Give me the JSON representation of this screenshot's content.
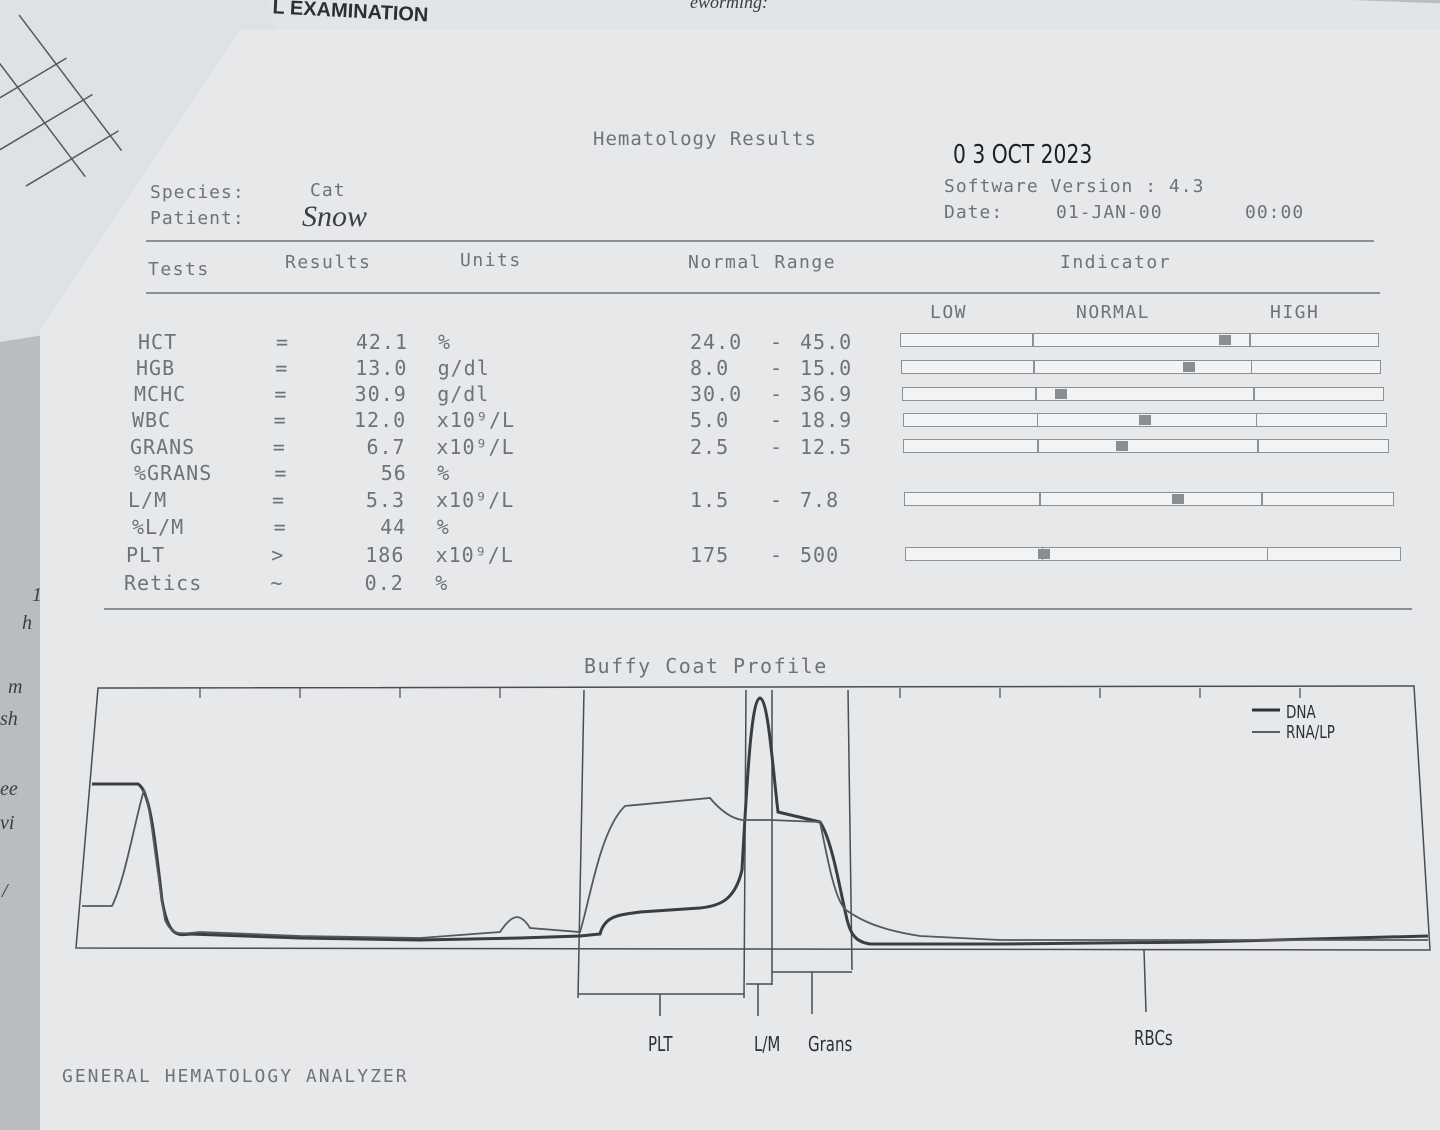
{
  "background_paper": {
    "title": "AL EXAMINATION",
    "deworming": "eworming:"
  },
  "report": {
    "title": "Hematology Results",
    "date_stamp": "0 3 OCT 2023",
    "species_label": "Species:",
    "species_value": "Cat",
    "patient_label": "Patient:",
    "patient_value": "Snow",
    "software_version": "Software Version : 4.3",
    "date_label": "Date:",
    "date_value": "01-JAN-00",
    "time_value": "00:00"
  },
  "columns": {
    "tests": "Tests",
    "results": "Results",
    "units": "Units",
    "normal_range": "Normal Range",
    "indicator": "Indicator"
  },
  "indicator_scale": {
    "low": "LOW",
    "normal": "NORMAL",
    "high": "HIGH"
  },
  "tests": [
    {
      "name": "HCT",
      "op": "=",
      "value": "42.1",
      "unit": "%",
      "range_low": "24.0",
      "dash": "-",
      "range_high": "45.0",
      "indicator": 0.68
    },
    {
      "name": "HGB",
      "op": "=",
      "value": "13.0",
      "unit": "g/dl",
      "range_low": "8.0",
      "dash": "-",
      "range_high": "15.0",
      "indicator": 0.6
    },
    {
      "name": "MCHC",
      "op": "=",
      "value": "30.9",
      "unit": "g/dl",
      "range_low": "30.0",
      "dash": "-",
      "range_high": "36.9",
      "indicator": 0.33
    },
    {
      "name": "WBC",
      "op": "=",
      "value": "12.0",
      "unit": "x10⁹/L",
      "range_low": "5.0",
      "dash": "-",
      "range_high": "18.9",
      "indicator": 0.5
    },
    {
      "name": "GRANS",
      "op": "=",
      "value": "6.7",
      "unit": "x10⁹/L",
      "range_low": "2.5",
      "dash": "-",
      "range_high": "12.5",
      "indicator": 0.45
    },
    {
      "name": "%GRANS",
      "op": "=",
      "value": "56",
      "unit": "%",
      "range_low": "",
      "dash": "",
      "range_high": "",
      "indicator": null
    },
    {
      "name": "L/M",
      "op": "=",
      "value": "5.3",
      "unit": "x10⁹/L",
      "range_low": "1.5",
      "dash": "-",
      "range_high": "7.8",
      "indicator": 0.56
    },
    {
      "name": "%L/M",
      "op": "=",
      "value": "44",
      "unit": "%",
      "range_low": "",
      "dash": "",
      "range_high": "",
      "indicator": null
    },
    {
      "name": "PLT",
      "op": ">",
      "value": "186",
      "unit": "x10⁹/L",
      "range_low": "175",
      "dash": "-",
      "range_high": "500",
      "indicator": 0.28
    },
    {
      "name": "Retics",
      "op": "~",
      "value": "0.2",
      "unit": "%",
      "range_low": "",
      "dash": "",
      "range_high": "",
      "indicator": null
    }
  ],
  "buffy_coat": {
    "title": "Buffy Coat Profile",
    "legend": [
      "DNA",
      "RNA/LP"
    ],
    "regions": [
      "PLT",
      "L/M",
      "Grans",
      "RBCs"
    ]
  },
  "margin_notes": [
    "1",
    "h",
    "m",
    "sh",
    "ee",
    "vi",
    "/"
  ],
  "footer": "GENERAL HEMATOLOGY ANALYZER"
}
